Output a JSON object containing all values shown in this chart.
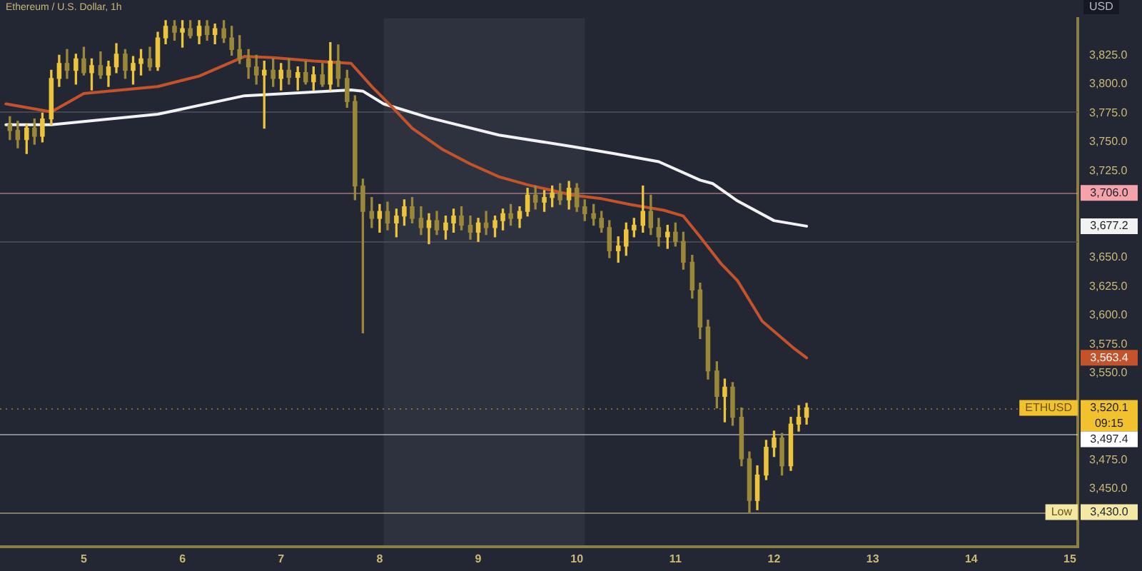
{
  "chart_data": {
    "type": "candlestick",
    "title": "Ethereum / U.S. Dollar, 1h",
    "ylabel": "USD",
    "x": [
      4.25,
      4.33,
      4.42,
      4.5,
      4.58,
      4.67,
      4.75,
      4.83,
      4.92,
      5,
      5.08,
      5.17,
      5.25,
      5.33,
      5.42,
      5.5,
      5.58,
      5.67,
      5.75,
      5.83,
      5.92,
      6,
      6.08,
      6.17,
      6.25,
      6.33,
      6.42,
      6.5,
      6.58,
      6.67,
      6.75,
      6.83,
      6.92,
      7,
      7.08,
      7.17,
      7.25,
      7.33,
      7.42,
      7.5,
      7.58,
      7.67,
      7.75,
      7.83,
      7.92,
      8,
      8.08,
      8.17,
      8.25,
      8.33,
      8.42,
      8.5,
      8.58,
      8.67,
      8.75,
      8.83,
      8.92,
      9,
      9.08,
      9.17,
      9.25,
      9.33,
      9.42,
      9.5,
      9.58,
      9.67,
      9.75,
      9.83,
      9.92,
      10,
      10.08,
      10.17,
      10.25,
      10.33,
      10.42,
      10.5,
      10.58,
      10.67,
      10.75,
      10.83,
      10.92,
      11,
      11.08,
      11.17,
      11.25,
      11.33,
      11.42,
      11.5,
      11.58,
      11.67,
      11.75,
      11.83,
      11.92,
      12,
      12.08,
      12.17,
      12.25,
      12.33
    ],
    "ohlc": [
      [
        3765,
        3772,
        3752,
        3760
      ],
      [
        3760,
        3768,
        3745,
        3752
      ],
      [
        3752,
        3765,
        3740,
        3762
      ],
      [
        3762,
        3770,
        3748,
        3755
      ],
      [
        3755,
        3775,
        3750,
        3770
      ],
      [
        3770,
        3812,
        3765,
        3805
      ],
      [
        3805,
        3825,
        3798,
        3818
      ],
      [
        3818,
        3830,
        3805,
        3812
      ],
      [
        3812,
        3826,
        3800,
        3822
      ],
      [
        3822,
        3832,
        3808,
        3810
      ],
      [
        3810,
        3822,
        3795,
        3816
      ],
      [
        3816,
        3828,
        3805,
        3808
      ],
      [
        3808,
        3820,
        3798,
        3815
      ],
      [
        3815,
        3835,
        3810,
        3826
      ],
      [
        3826,
        3830,
        3805,
        3812
      ],
      [
        3812,
        3824,
        3800,
        3818
      ],
      [
        3818,
        3830,
        3808,
        3822
      ],
      [
        3822,
        3832,
        3812,
        3815
      ],
      [
        3815,
        3845,
        3812,
        3840
      ],
      [
        3840,
        3855,
        3835,
        3850
      ],
      [
        3850,
        3855,
        3838,
        3845
      ],
      [
        3845,
        3855,
        3832,
        3848
      ],
      [
        3848,
        3855,
        3840,
        3842
      ],
      [
        3842,
        3855,
        3835,
        3850
      ],
      [
        3850,
        3855,
        3838,
        3843
      ],
      [
        3843,
        3852,
        3835,
        3848
      ],
      [
        3848,
        3855,
        3836,
        3840
      ],
      [
        3840,
        3850,
        3825,
        3830
      ],
      [
        3830,
        3842,
        3818,
        3822
      ],
      [
        3822,
        3830,
        3805,
        3815
      ],
      [
        3815,
        3825,
        3800,
        3808
      ],
      [
        3808,
        3820,
        3762,
        3812
      ],
      [
        3812,
        3822,
        3798,
        3805
      ],
      [
        3805,
        3818,
        3795,
        3812
      ],
      [
        3812,
        3822,
        3800,
        3806
      ],
      [
        3806,
        3815,
        3795,
        3810
      ],
      [
        3810,
        3820,
        3800,
        3802
      ],
      [
        3802,
        3815,
        3795,
        3808
      ],
      [
        3808,
        3818,
        3798,
        3800
      ],
      [
        3800,
        3836,
        3795,
        3820
      ],
      [
        3820,
        3834,
        3798,
        3805
      ],
      [
        3805,
        3812,
        3780,
        3785
      ],
      [
        3785,
        3790,
        3700,
        3712
      ],
      [
        3712,
        3718,
        3585,
        3690
      ],
      [
        3690,
        3702,
        3676,
        3684
      ],
      [
        3684,
        3696,
        3672,
        3690
      ],
      [
        3690,
        3698,
        3674,
        3680
      ],
      [
        3680,
        3692,
        3668,
        3686
      ],
      [
        3686,
        3700,
        3678,
        3694
      ],
      [
        3694,
        3702,
        3680,
        3684
      ],
      [
        3684,
        3694,
        3670,
        3676
      ],
      [
        3676,
        3688,
        3662,
        3682
      ],
      [
        3682,
        3690,
        3670,
        3674
      ],
      [
        3674,
        3686,
        3666,
        3680
      ],
      [
        3680,
        3692,
        3672,
        3686
      ],
      [
        3686,
        3694,
        3674,
        3678
      ],
      [
        3678,
        3686,
        3666,
        3672
      ],
      [
        3672,
        3684,
        3664,
        3680
      ],
      [
        3680,
        3690,
        3670,
        3676
      ],
      [
        3676,
        3686,
        3668,
        3682
      ],
      [
        3682,
        3692,
        3674,
        3688
      ],
      [
        3688,
        3696,
        3678,
        3684
      ],
      [
        3684,
        3694,
        3676,
        3690
      ],
      [
        3690,
        3710,
        3686,
        3704
      ],
      [
        3704,
        3712,
        3692,
        3698
      ],
      [
        3698,
        3708,
        3690,
        3702
      ],
      [
        3702,
        3712,
        3694,
        3706
      ],
      [
        3706,
        3714,
        3696,
        3700
      ],
      [
        3700,
        3716,
        3692,
        3710
      ],
      [
        3710,
        3714,
        3690,
        3694
      ],
      [
        3694,
        3700,
        3682,
        3688
      ],
      [
        3688,
        3696,
        3678,
        3684
      ],
      [
        3684,
        3690,
        3672,
        3676
      ],
      [
        3676,
        3682,
        3650,
        3656
      ],
      [
        3656,
        3668,
        3646,
        3660
      ],
      [
        3660,
        3680,
        3652,
        3674
      ],
      [
        3674,
        3684,
        3668,
        3678
      ],
      [
        3678,
        3712,
        3672,
        3690
      ],
      [
        3690,
        3704,
        3670,
        3676
      ],
      [
        3676,
        3684,
        3660,
        3668
      ],
      [
        3668,
        3678,
        3658,
        3672
      ],
      [
        3672,
        3680,
        3660,
        3664
      ],
      [
        3664,
        3672,
        3640,
        3646
      ],
      [
        3646,
        3652,
        3615,
        3622
      ],
      [
        3622,
        3628,
        3580,
        3590
      ],
      [
        3590,
        3596,
        3545,
        3552
      ],
      [
        3552,
        3560,
        3520,
        3530
      ],
      [
        3530,
        3545,
        3508,
        3538
      ],
      [
        3538,
        3542,
        3505,
        3512
      ],
      [
        3512,
        3520,
        3470,
        3476
      ],
      [
        3476,
        3482,
        3430,
        3440
      ],
      [
        3440,
        3470,
        3432,
        3462
      ],
      [
        3462,
        3492,
        3458,
        3486
      ],
      [
        3486,
        3500,
        3478,
        3494
      ],
      [
        3494,
        3498,
        3462,
        3470
      ],
      [
        3470,
        3512,
        3466,
        3506
      ],
      [
        3506,
        3522,
        3500,
        3512
      ],
      [
        3512,
        3524,
        3506,
        3520.1
      ]
    ],
    "colors": [
      "#9a8838",
      "#9a8838",
      "#ecc43c",
      "#9a8838",
      "#ecc43c",
      "#ecc43c",
      "#ecc43c",
      "#9a8838",
      "#ecc43c",
      "#9a8838",
      "#ecc43c",
      "#9a8838",
      "#ecc43c",
      "#ecc43c",
      "#9a8838",
      "#ecc43c",
      "#ecc43c",
      "#9a8838",
      "#ecc43c",
      "#ecc43c",
      "#9a8838",
      "#ecc43c",
      "#9a8838",
      "#ecc43c",
      "#9a8838",
      "#ecc43c",
      "#9a8838",
      "#9a8838",
      "#9a8838",
      "#9a8838",
      "#9a8838",
      "#ecc43c",
      "#9a8838",
      "#ecc43c",
      "#9a8838",
      "#ecc43c",
      "#9a8838",
      "#ecc43c",
      "#9a8838",
      "#ecc43c",
      "#9a8838",
      "#9a8838",
      "#9a8838",
      "#9a8838",
      "#9a8838",
      "#ecc43c",
      "#9a8838",
      "#ecc43c",
      "#ecc43c",
      "#9a8838",
      "#9a8838",
      "#ecc43c",
      "#9a8838",
      "#ecc43c",
      "#ecc43c",
      "#9a8838",
      "#9a8838",
      "#ecc43c",
      "#9a8838",
      "#ecc43c",
      "#ecc43c",
      "#9a8838",
      "#ecc43c",
      "#ecc43c",
      "#9a8838",
      "#ecc43c",
      "#ecc43c",
      "#9a8838",
      "#ecc43c",
      "#9a8838",
      "#9a8838",
      "#9a8838",
      "#9a8838",
      "#9a8838",
      "#ecc43c",
      "#ecc43c",
      "#ecc43c",
      "#ecc43c",
      "#9a8838",
      "#9a8838",
      "#ecc43c",
      "#9a8838",
      "#9a8838",
      "#9a8838",
      "#9a8838",
      "#9a8838",
      "#9a8838",
      "#ecc43c",
      "#9a8838",
      "#9a8838",
      "#9a8838",
      "#ecc43c",
      "#ecc43c",
      "#ecc43c",
      "#9a8838",
      "#ecc43c",
      "#ecc43c",
      "#ecc43c"
    ],
    "series": [
      {
        "type": "line",
        "color": "#c4532b",
        "x": [
          4.21,
          4.67,
          5,
          5.75,
          6.17,
          6.63,
          6.92,
          7.33,
          7.71,
          7.92,
          8.13,
          8.33,
          8.63,
          8.92,
          9.21,
          9.5,
          9.96,
          10.25,
          10.54,
          10.88,
          11.08,
          11.25,
          11.46,
          11.63,
          11.88,
          12.21,
          12.33
        ],
        "values": [
          3783,
          3776,
          3792,
          3798,
          3807,
          3824,
          3823,
          3820,
          3818,
          3798,
          3780,
          3762,
          3744,
          3731,
          3720,
          3713,
          3704,
          3701,
          3696,
          3691,
          3686,
          3668,
          3645,
          3630,
          3595,
          3571,
          3563.4
        ]
      },
      {
        "type": "line",
        "color": "#f2f2f2",
        "x": [
          4.21,
          4.67,
          5.75,
          6.63,
          7.71,
          7.83,
          8.04,
          8.5,
          9.21,
          9.96,
          10.38,
          10.83,
          11.25,
          11.38,
          11.63,
          12,
          12.33
        ],
        "values": [
          3765,
          3765,
          3774,
          3790,
          3795,
          3794,
          3783,
          3771,
          3756,
          3746,
          3740,
          3733,
          3717,
          3714,
          3699,
          3682,
          3677.2
        ]
      }
    ],
    "xlim": [
      4.15,
      15.08
    ],
    "xticks": [
      5,
      6,
      7,
      8,
      9,
      10,
      11,
      12,
      13,
      14,
      15
    ],
    "ylim": [
      3400,
      3857
    ],
    "yticks": [
      {
        "value": 3450,
        "label": "3,450.0"
      },
      {
        "value": 3475,
        "label": "3,475.0"
      },
      {
        "value": 3550,
        "label": "3,550.0"
      },
      {
        "value": 3575,
        "label": "3,575.0"
      },
      {
        "value": 3600,
        "label": "3,600.0"
      },
      {
        "value": 3625,
        "label": "3,625.0"
      },
      {
        "value": 3650,
        "label": "3,650.0"
      },
      {
        "value": 3725,
        "label": "3,725.0"
      },
      {
        "value": 3750,
        "label": "3,750.0"
      },
      {
        "value": 3775,
        "label": "3,775.0"
      },
      {
        "value": 3800,
        "label": "3,800.0"
      },
      {
        "value": 3825,
        "label": "3,825.0"
      }
    ],
    "bands": [
      {
        "axis": "x",
        "from": 8.04,
        "to": 10.08,
        "color": "#2d323e"
      }
    ],
    "ref_lines": [
      {
        "axis": "y",
        "value": 3777,
        "color": "#4c505a"
      },
      {
        "axis": "y",
        "value": 3664,
        "color": "#4c505a"
      },
      {
        "axis": "y",
        "value": 3706.0,
        "label": "3,706.0",
        "color": "#f4a3ab"
      },
      {
        "axis": "y",
        "value": 3520.1,
        "label": "3,520.1\n09:15",
        "color": "#f2c12e",
        "line_style": "dotted"
      },
      {
        "axis": "y",
        "value": 3497.4,
        "label": "3,497.4",
        "color": "#ffffff"
      },
      {
        "axis": "y",
        "value": 3430.0,
        "label": "3,430.0",
        "color": "#f3e8a4"
      }
    ],
    "annotations": [
      "3,563.4",
      "3,677.2",
      {
        "text": "ETHUSD",
        "y": 3520.1
      },
      {
        "text": "Low",
        "y": 3430.0
      }
    ]
  }
}
